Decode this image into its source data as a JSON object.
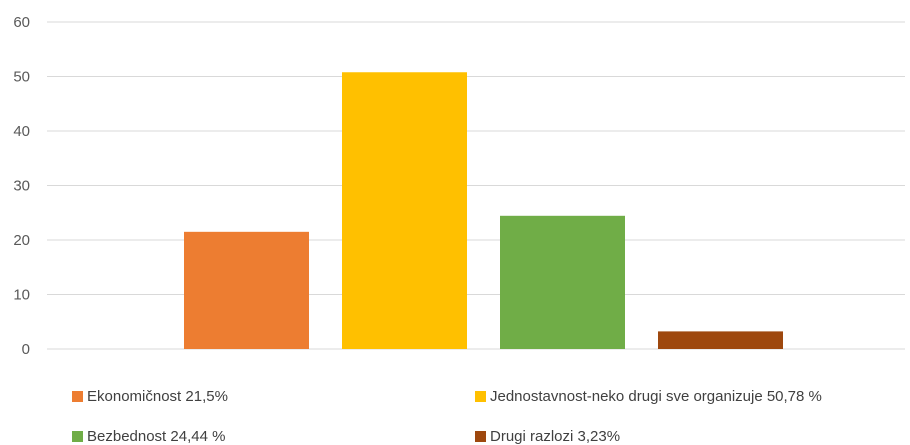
{
  "chart_data": {
    "type": "bar",
    "categories": [
      "Ekonomičnost 21,5%",
      "Jednostavnost-neko drugi sve organizuje 50,78 %",
      "Bezbednost 24,44 %",
      "Drugi razlozi 3,23%"
    ],
    "values": [
      21.5,
      50.78,
      24.44,
      3.23
    ],
    "colors": [
      "#ED7D31",
      "#FFC000",
      "#70AD47",
      "#9E480E"
    ],
    "ylim": [
      0,
      60
    ],
    "yticks": [
      0,
      10,
      20,
      30,
      40,
      50,
      60
    ],
    "grid": true,
    "legend_position": "bottom",
    "title": "",
    "xlabel": "",
    "ylabel": ""
  }
}
